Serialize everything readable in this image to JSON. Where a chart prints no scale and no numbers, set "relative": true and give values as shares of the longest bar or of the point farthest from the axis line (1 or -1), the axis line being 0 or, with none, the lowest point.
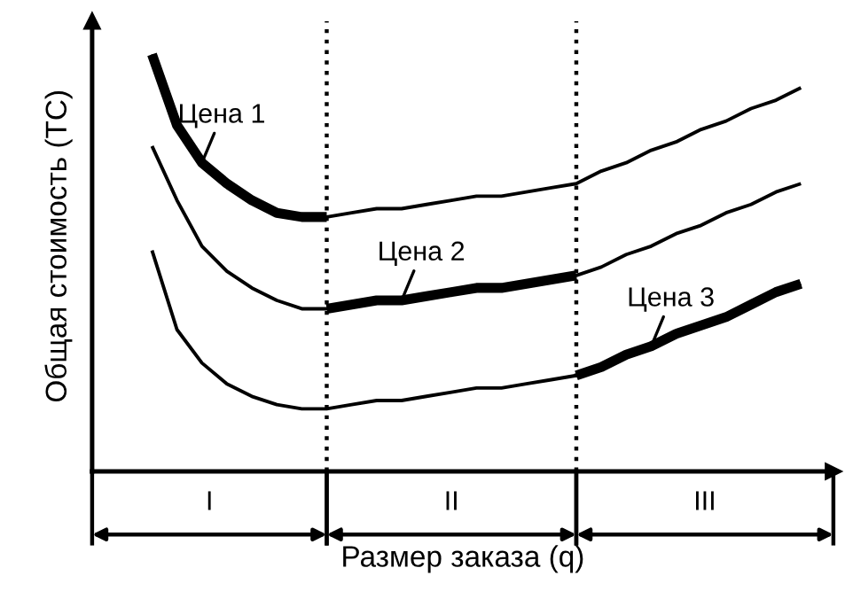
{
  "chart_data": {
    "type": "line",
    "relative": true,
    "xlabel": "Размер заказа (q)",
    "ylabel": "Общая стоимость (TC)",
    "categories": [
      null,
      null,
      null,
      null,
      null,
      null,
      null,
      null,
      null,
      null,
      null,
      null,
      null,
      null,
      null,
      null,
      null,
      null,
      null,
      null,
      null,
      null,
      null,
      null,
      null,
      null,
      null
    ],
    "series": [
      {
        "color": "#000000",
        "values": [
          1.0,
          0.83,
          0.74,
          0.69,
          0.65,
          0.62,
          0.61,
          0.61,
          0.62,
          0.63,
          0.63,
          0.64,
          0.65,
          0.66,
          0.66,
          0.67,
          0.68,
          0.69,
          0.72,
          0.74,
          0.77,
          0.79,
          0.82,
          0.84,
          0.87,
          0.89,
          0.92
        ]
      },
      {
        "color": "#000000",
        "values": [
          0.78,
          0.65,
          0.54,
          0.48,
          0.44,
          0.41,
          0.39,
          0.39,
          0.4,
          0.41,
          0.41,
          0.42,
          0.43,
          0.44,
          0.44,
          0.45,
          0.46,
          0.47,
          0.49,
          0.52,
          0.54,
          0.57,
          0.59,
          0.62,
          0.64,
          0.67,
          0.69
        ]
      },
      {
        "color": "#000000",
        "values": [
          0.53,
          0.34,
          0.26,
          0.21,
          0.18,
          0.16,
          0.15,
          0.15,
          0.16,
          0.17,
          0.17,
          0.18,
          0.19,
          0.2,
          0.2,
          0.21,
          0.22,
          0.23,
          0.25,
          0.28,
          0.3,
          0.33,
          0.35,
          0.37,
          0.4,
          0.43,
          0.45
        ]
      },
      {
        "name": "Цена 1",
        "color": "#000000",
        "values": [
          1.0,
          0.83,
          0.74,
          0.69,
          0.65,
          0.62,
          0.61,
          0.61,
          null,
          null,
          null,
          null,
          null,
          null,
          null,
          null,
          null,
          null,
          null,
          null,
          null,
          null,
          null,
          null,
          null,
          null,
          null
        ]
      },
      {
        "name": "Цена 2",
        "color": "#000000",
        "values": [
          null,
          null,
          null,
          null,
          null,
          null,
          null,
          0.39,
          0.4,
          0.41,
          0.41,
          0.42,
          0.43,
          0.44,
          0.44,
          0.45,
          0.46,
          0.47,
          null,
          null,
          null,
          null,
          null,
          null,
          null,
          null,
          null
        ]
      },
      {
        "name": "Цена 3",
        "color": "#000000",
        "values": [
          null,
          null,
          null,
          null,
          null,
          null,
          null,
          null,
          null,
          null,
          null,
          null,
          null,
          null,
          null,
          null,
          null,
          0.23,
          0.25,
          0.28,
          0.3,
          0.33,
          0.35,
          0.37,
          0.4,
          0.43,
          0.45
        ]
      }
    ],
    "annotations": [
      "I",
      "II",
      "III"
    ],
    "legend": false,
    "marker": "none",
    "line_style": "solid"
  }
}
